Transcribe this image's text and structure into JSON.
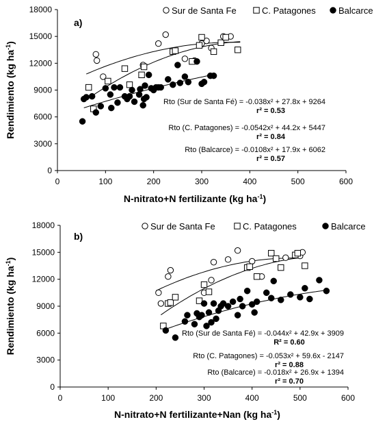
{
  "chart_data": [
    {
      "type": "scatter",
      "panel_label": "a)",
      "xlabel": "N-nitrato+N fertilizante (kg ha-1)",
      "ylabel": "Rendimiento (kg ha-1)",
      "xlim": [
        0,
        600
      ],
      "ylim": [
        0,
        18000
      ],
      "xticks": [
        "0",
        "100",
        "200",
        "300",
        "400",
        "500",
        "600"
      ],
      "yticks": [
        "0",
        "3000",
        "6000",
        "9000",
        "12000",
        "15000",
        "18000"
      ],
      "legend": [
        "Sur de Santa Fe",
        "C. Patagones",
        "Balcarce"
      ],
      "series": [
        {
          "name": "Sur de Santa Fe",
          "marker": "open-circle",
          "points": [
            [
              80,
              13000
            ],
            [
              82,
              12300
            ],
            [
              95,
              10500
            ],
            [
              178,
              11800
            ],
            [
              210,
              14200
            ],
            [
              225,
              15200
            ],
            [
              265,
              12500
            ],
            [
              285,
              12300
            ],
            [
              300,
              14200
            ],
            [
              310,
              14500
            ],
            [
              320,
              13700
            ],
            [
              345,
              15000
            ],
            [
              360,
              15000
            ]
          ]
        },
        {
          "name": "C. Patagones",
          "marker": "open-square",
          "points": [
            [
              65,
              9300
            ],
            [
              75,
              6900
            ],
            [
              105,
              10000
            ],
            [
              140,
              11400
            ],
            [
              150,
              9600
            ],
            [
              175,
              10700
            ],
            [
              180,
              11600
            ],
            [
              240,
              13300
            ],
            [
              245,
              13400
            ],
            [
              280,
              12200
            ],
            [
              295,
              14000
            ],
            [
              300,
              14900
            ],
            [
              325,
              13300
            ],
            [
              340,
              14300
            ],
            [
              350,
              14900
            ],
            [
              375,
              13500
            ]
          ]
        },
        {
          "name": "Balcarce",
          "marker": "filled-circle",
          "points": [
            [
              52,
              5500
            ],
            [
              55,
              8000
            ],
            [
              60,
              8200
            ],
            [
              72,
              8300
            ],
            [
              80,
              6500
            ],
            [
              90,
              7200
            ],
            [
              100,
              9200
            ],
            [
              110,
              8500
            ],
            [
              112,
              7000
            ],
            [
              118,
              9300
            ],
            [
              125,
              7600
            ],
            [
              130,
              9300
            ],
            [
              140,
              8300
            ],
            [
              145,
              8000
            ],
            [
              150,
              8300
            ],
            [
              155,
              9000
            ],
            [
              160,
              7700
            ],
            [
              170,
              8500
            ],
            [
              172,
              9100
            ],
            [
              178,
              7300
            ],
            [
              180,
              8000
            ],
            [
              182,
              9500
            ],
            [
              185,
              8200
            ],
            [
              190,
              10700
            ],
            [
              195,
              9200
            ],
            [
              200,
              9000
            ],
            [
              205,
              9300
            ],
            [
              210,
              9300
            ],
            [
              215,
              9300
            ],
            [
              230,
              10200
            ],
            [
              240,
              9600
            ],
            [
              250,
              11800
            ],
            [
              255,
              9800
            ],
            [
              265,
              10500
            ],
            [
              272,
              9900
            ],
            [
              290,
              12200
            ],
            [
              300,
              9700
            ],
            [
              305,
              9900
            ],
            [
              318,
              10600
            ],
            [
              325,
              10600
            ]
          ]
        }
      ],
      "fits": [
        {
          "series": "Sur de Santa Fe",
          "a": -0.038,
          "b": 27.8,
          "c": 9264,
          "xrange": [
            60,
            380
          ]
        },
        {
          "series": "C. Patagones",
          "a": -0.0542,
          "b": 44.2,
          "c": 5447,
          "xrange": [
            60,
            380
          ]
        },
        {
          "series": "Balcarce",
          "a": -0.0108,
          "b": 17.9,
          "c": 6062,
          "xrange": [
            55,
            325
          ]
        }
      ],
      "equations": [
        {
          "formula": "Rto (Sur de Santa Fé) = -0.038x² + 27.8x + 9264",
          "r2": "r² = 0.53"
        },
        {
          "formula": "Rto (C. Patagones) = -0.0542x² + 44.2x + 5447",
          "r2": "r² = 0.84"
        },
        {
          "formula": "Rto (Balcarce) = -0.0108x² + 17.9x + 6062",
          "r2": "r² = 0.57"
        }
      ]
    },
    {
      "type": "scatter",
      "panel_label": "b)",
      "xlabel": "N-nitrato+N fertilizante+Nan (kg ha-1)",
      "ylabel": "Rendimiento (kg ha-1)",
      "xlim": [
        0,
        600
      ],
      "ylim": [
        0,
        18000
      ],
      "xticks": [
        "0",
        "100",
        "200",
        "300",
        "400",
        "500",
        "600"
      ],
      "yticks": [
        "0",
        "3000",
        "6000",
        "9000",
        "12000",
        "15000",
        "18000"
      ],
      "legend": [
        "Sur de Santa Fe",
        "C. Patagones",
        "Balcarce"
      ],
      "series": [
        {
          "name": "Sur de Santa Fe",
          "marker": "open-circle",
          "points": [
            [
              205,
              10500
            ],
            [
              210,
              9300
            ],
            [
              225,
              12300
            ],
            [
              230,
              13000
            ],
            [
              300,
              10500
            ],
            [
              315,
              11900
            ],
            [
              320,
              13900
            ],
            [
              350,
              14200
            ],
            [
              370,
              15200
            ],
            [
              400,
              14000
            ],
            [
              420,
              12300
            ],
            [
              470,
              14400
            ],
            [
              500,
              14600
            ],
            [
              505,
              15000
            ]
          ]
        },
        {
          "name": "C. Patagones",
          "marker": "open-square",
          "points": [
            [
              215,
              6800
            ],
            [
              225,
              9300
            ],
            [
              230,
              9400
            ],
            [
              240,
              10000
            ],
            [
              290,
              9600
            ],
            [
              300,
              11400
            ],
            [
              310,
              10600
            ],
            [
              390,
              13300
            ],
            [
              395,
              13400
            ],
            [
              410,
              12300
            ],
            [
              440,
              14900
            ],
            [
              450,
              14300
            ],
            [
              460,
              13300
            ],
            [
              490,
              14700
            ],
            [
              495,
              14900
            ],
            [
              510,
              13500
            ]
          ]
        },
        {
          "name": "Balcarce",
          "marker": "filled-circle",
          "points": [
            [
              220,
              6300
            ],
            [
              240,
              5500
            ],
            [
              260,
              7300
            ],
            [
              265,
              8000
            ],
            [
              280,
              7000
            ],
            [
              285,
              8200
            ],
            [
              290,
              7800
            ],
            [
              295,
              8000
            ],
            [
              300,
              9300
            ],
            [
              305,
              6800
            ],
            [
              310,
              8300
            ],
            [
              315,
              7200
            ],
            [
              320,
              9300
            ],
            [
              325,
              7600
            ],
            [
              330,
              8500
            ],
            [
              335,
              9000
            ],
            [
              340,
              9300
            ],
            [
              350,
              9000
            ],
            [
              360,
              9500
            ],
            [
              370,
              8000
            ],
            [
              375,
              9800
            ],
            [
              380,
              9000
            ],
            [
              390,
              10700
            ],
            [
              400,
              9200
            ],
            [
              405,
              8300
            ],
            [
              410,
              9500
            ],
            [
              430,
              10500
            ],
            [
              440,
              9900
            ],
            [
              445,
              11800
            ],
            [
              460,
              9700
            ],
            [
              480,
              10300
            ],
            [
              500,
              10000
            ],
            [
              510,
              11000
            ],
            [
              520,
              9800
            ],
            [
              540,
              11900
            ],
            [
              555,
              10700
            ]
          ]
        }
      ],
      "fits": [
        {
          "series": "Sur de Santa Fe",
          "a": -0.044,
          "b": 42.9,
          "c": 3909,
          "xrange": [
            200,
            505
          ]
        },
        {
          "series": "C. Patagones",
          "a": -0.053,
          "b": 59.6,
          "c": -2147,
          "xrange": [
            210,
            505
          ]
        },
        {
          "series": "Balcarce",
          "a": -0.018,
          "b": 26.9,
          "c": 1394,
          "xrange": [
            215,
            555
          ]
        }
      ],
      "equations": [
        {
          "formula": "Rto (Sur de Santa Fé) = -0.044x² + 42.9x + 3909",
          "r2": "R² = 0.60"
        },
        {
          "formula": "Rto (C. Patagones) = -0.053x² + 59.6x - 2147",
          "r2": "r² = 0.88"
        },
        {
          "formula": "Rto (Balcarce) = -0.018x² + 26.9x + 1394",
          "r2": "r² = 0.70"
        }
      ]
    }
  ]
}
